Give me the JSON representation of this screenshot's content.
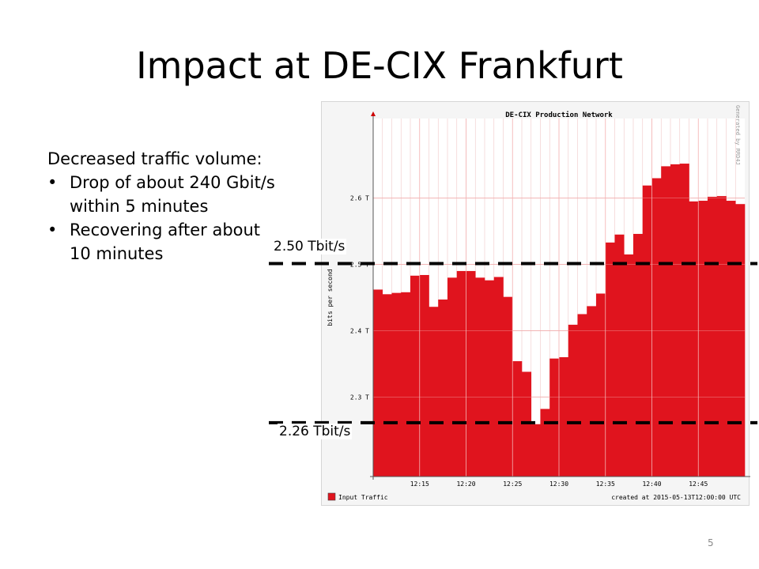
{
  "slide": {
    "title": "Impact at DE-CIX Frankfurt",
    "page_number": "5"
  },
  "body": {
    "heading": "Decreased traffic volume:",
    "bullets": [
      "Drop of about 240 Gbit/s within 5 minutes",
      "Recovering after about 10 minutes"
    ]
  },
  "annotations": {
    "upper_label": "2.50 Tbit/s",
    "lower_label": "2.26 Tbit/s",
    "upper_value": 2.5,
    "lower_value": 2.26,
    "line_color": "#000000"
  },
  "chart_data": {
    "type": "area",
    "title": "DE-CIX Production Network",
    "ylabel": "bits per second",
    "watermark": "Generated by RRD4J",
    "legend": {
      "label": "Input Traffic",
      "color": "#e0141e",
      "placement": "bottom-left"
    },
    "footer": "created at 2015-05-13T12:00:00 UTC",
    "color": "#e0141e",
    "grid": true,
    "x_range": [
      "12:10",
      "12:50"
    ],
    "x_ticks": [
      "12:15",
      "12:20",
      "12:25",
      "12:30",
      "12:35",
      "12:40",
      "12:45"
    ],
    "y_ticks": [
      {
        "value": 2.3,
        "label": "2.3 T"
      },
      {
        "value": 2.4,
        "label": "2.4 T"
      },
      {
        "value": 2.5,
        "label": "2.5 T"
      },
      {
        "value": 2.6,
        "label": "2.6 T"
      }
    ],
    "ylim": [
      2.18,
      2.72
    ],
    "x": [
      "12:10",
      "12:11",
      "12:12",
      "12:13",
      "12:14",
      "12:15",
      "12:16",
      "12:17",
      "12:18",
      "12:19",
      "12:20",
      "12:21",
      "12:22",
      "12:23",
      "12:24",
      "12:25",
      "12:26",
      "12:27",
      "12:28",
      "12:29",
      "12:30",
      "12:31",
      "12:32",
      "12:33",
      "12:34",
      "12:35",
      "12:36",
      "12:37",
      "12:38",
      "12:39",
      "12:40",
      "12:41",
      "12:42",
      "12:43",
      "12:44",
      "12:45",
      "12:46",
      "12:47",
      "12:48",
      "12:49"
    ],
    "values": [
      2.462,
      2.455,
      2.457,
      2.458,
      2.483,
      2.484,
      2.436,
      2.447,
      2.48,
      2.49,
      2.49,
      2.48,
      2.476,
      2.481,
      2.451,
      2.354,
      2.338,
      2.259,
      2.282,
      2.358,
      2.36,
      2.409,
      2.425,
      2.437,
      2.456,
      2.533,
      2.545,
      2.515,
      2.546,
      2.619,
      2.63,
      2.648,
      2.651,
      2.652,
      2.595,
      2.596,
      2.602,
      2.603,
      2.596,
      2.591
    ]
  }
}
